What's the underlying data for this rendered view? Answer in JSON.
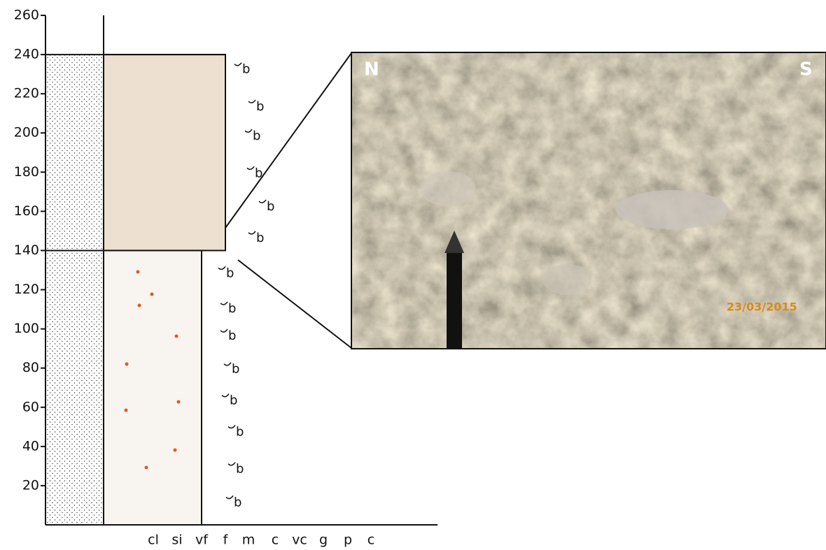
{
  "log": {
    "depth_ticks": [
      20,
      40,
      60,
      80,
      100,
      120,
      140,
      160,
      180,
      200,
      220,
      240,
      260
    ],
    "grain_sizes": [
      "cl",
      "si",
      "vf",
      "f",
      "m",
      "c",
      "vc",
      "g",
      "p",
      "c"
    ],
    "beds": [
      {
        "base": 0,
        "top": 140
      },
      {
        "base": 140,
        "top": 240
      }
    ],
    "fossils": [
      {
        "label": "b",
        "depth": 233
      },
      {
        "label": "b",
        "depth": 214
      },
      {
        "label": "b",
        "depth": 199
      },
      {
        "label": "b",
        "depth": 180
      },
      {
        "label": "b",
        "depth": 163
      },
      {
        "label": "b",
        "depth": 147
      },
      {
        "label": "b",
        "depth": 129
      },
      {
        "label": "b",
        "depth": 111
      },
      {
        "label": "b",
        "depth": 97
      },
      {
        "label": "b",
        "depth": 80
      },
      {
        "label": "b",
        "depth": 64
      },
      {
        "label": "b",
        "depth": 48
      },
      {
        "label": "b",
        "depth": 29
      },
      {
        "label": "b",
        "depth": 12
      }
    ]
  },
  "photo": {
    "left_label": "N",
    "right_label": "S",
    "date": "23/03/2015"
  }
}
